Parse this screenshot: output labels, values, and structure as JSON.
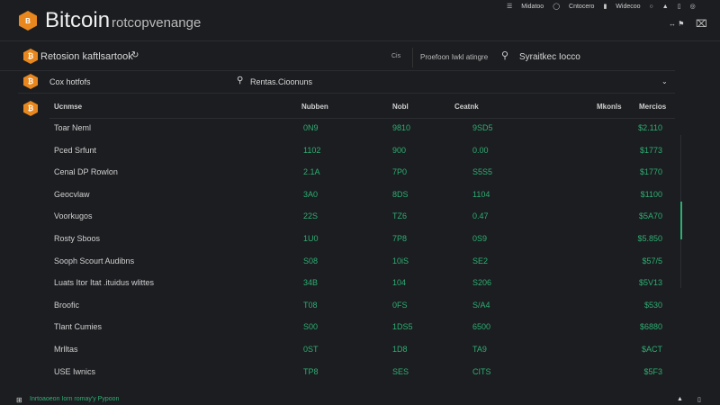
{
  "header": {
    "brand": "Bitcoin",
    "brand_suffix": "rotcopvenange",
    "nav": [
      "Midatoo",
      "Cntocero",
      "Widecoo"
    ]
  },
  "toolbar": {
    "title": "Retosion kaftlsartook",
    "shortcut": "Cis",
    "filter_label": "Proefoon Iwkl atingre",
    "search_label": "Syraitkec Iocco"
  },
  "subbar": {
    "label": "Cox hotfofs",
    "filter": "Rentas.Cioonuns"
  },
  "table": {
    "headers": [
      "Ucnmse",
      "Nubben",
      "Nobl",
      "Ceatnk",
      "Mkonls",
      "Mercios"
    ],
    "rows": [
      [
        "Toar Neml",
        "0N9",
        "9810",
        "9SD5",
        "$2.110"
      ],
      [
        "Pced Srfunt",
        "1102",
        "900",
        "0.00",
        "$1773"
      ],
      [
        "Cenal DP Rowlon",
        "2.1A",
        "7P0",
        "S5S5",
        "$1770"
      ],
      [
        "Geocvlaw",
        "3A0",
        "8DS",
        "1104",
        "$1100"
      ],
      [
        "Voorkugos",
        "22S",
        "TZ6",
        "0.47",
        "$5A70"
      ],
      [
        "Rosty Sboos",
        "1U0",
        "7P8",
        "0S9",
        "$5.850"
      ],
      [
        "Sooph Scourt Audibns",
        "S08",
        "10iS",
        "SE2",
        "$57/5"
      ],
      [
        "Luats Itor Itat .ituidus wlittes",
        "34B",
        "104",
        "S206",
        "$5V13"
      ],
      [
        "Broofic",
        "T08",
        "0FS",
        "S/A4",
        "$530"
      ],
      [
        "Tlant Cumies",
        "S00",
        "1DS5",
        "6500",
        "$6880"
      ],
      [
        "Mrlltas",
        "0ST",
        "1D8",
        "TA9",
        "$ACT"
      ],
      [
        "USE Iwnics",
        "TP8",
        "SES",
        "CITS",
        "$5F3"
      ]
    ]
  },
  "footer": {
    "status": "Inrtoaoeon Iorn romay'y Pypoon"
  },
  "colors": {
    "accent": "#e8871e",
    "value": "#2fae73",
    "background": "#1b1d20"
  }
}
